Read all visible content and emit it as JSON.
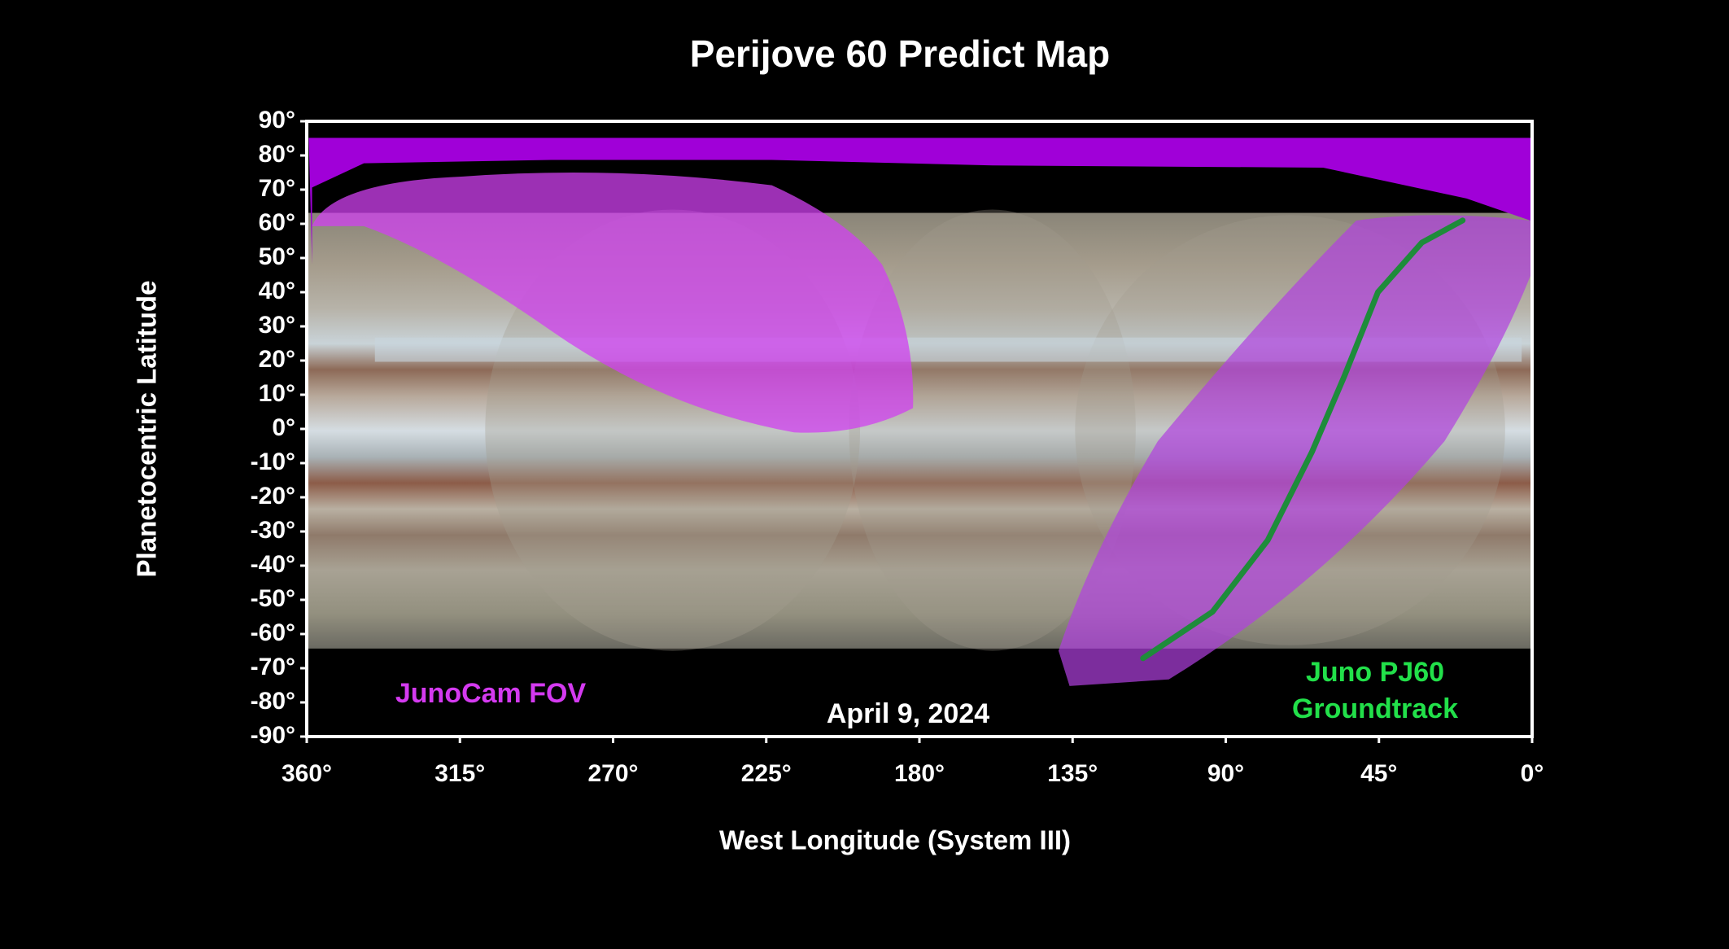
{
  "chart_data": {
    "type": "map",
    "title": "Perijove 60 Predict Map",
    "xlabel": "West Longitude (System III)",
    "ylabel": "Planetocentric Latitude",
    "xlim": [
      360,
      0
    ],
    "ylim": [
      -90,
      90
    ],
    "xticks": [
      {
        "value": 360,
        "label": "360°"
      },
      {
        "value": 315,
        "label": "315°"
      },
      {
        "value": 270,
        "label": "270°"
      },
      {
        "value": 225,
        "label": "225°"
      },
      {
        "value": 180,
        "label": "180°"
      },
      {
        "value": 135,
        "label": "135°"
      },
      {
        "value": 90,
        "label": "90°"
      },
      {
        "value": 45,
        "label": "45°"
      },
      {
        "value": 0,
        "label": "0°"
      }
    ],
    "yticks": [
      {
        "value": 90,
        "label": "90°"
      },
      {
        "value": 80,
        "label": "80°"
      },
      {
        "value": 70,
        "label": "70°"
      },
      {
        "value": 60,
        "label": "60°"
      },
      {
        "value": 50,
        "label": "50°"
      },
      {
        "value": 40,
        "label": "40°"
      },
      {
        "value": 30,
        "label": "30°"
      },
      {
        "value": 20,
        "label": "20°"
      },
      {
        "value": 10,
        "label": "10°"
      },
      {
        "value": 0,
        "label": "0°"
      },
      {
        "value": -10,
        "label": "-10°"
      },
      {
        "value": -20,
        "label": "-20°"
      },
      {
        "value": -30,
        "label": "-30°"
      },
      {
        "value": -40,
        "label": "-40°"
      },
      {
        "value": -50,
        "label": "-50°"
      },
      {
        "value": -60,
        "label": "-60°"
      },
      {
        "value": -70,
        "label": "-70°"
      },
      {
        "value": -80,
        "label": "-80°"
      },
      {
        "value": -90,
        "label": "-90°"
      }
    ],
    "series": [
      {
        "name": "Juno PJ60 Groundtrack",
        "color": "#1e8c3a",
        "x": [
          114.3,
          93.9,
          77.7,
          64.7,
          55.0,
          45.3,
          32.4,
          20.4
        ],
        "y": [
          -67.1,
          -53.5,
          -32.6,
          -6.8,
          15.8,
          40.0,
          54.5,
          61.0
        ]
      }
    ],
    "annotations": {
      "fov": "JunoCam FOV",
      "date": "April 9, 2024"
    }
  }
}
